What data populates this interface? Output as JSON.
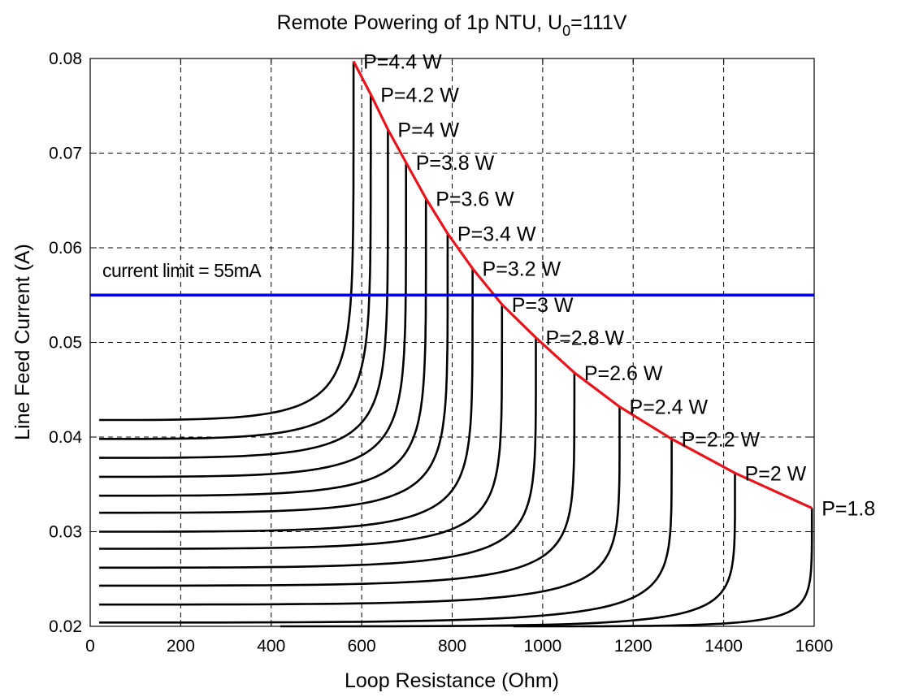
{
  "chart_data": {
    "type": "line",
    "title_main": "Remote Powering of 1p NTU, U",
    "title_sub": "0",
    "title_tail": "=111V",
    "xlabel": "Loop Resistance (Ohm)",
    "ylabel": "Line Feed Current (A)",
    "xlim": [
      0,
      1600
    ],
    "ylim": [
      0.02,
      0.08
    ],
    "grid": true,
    "x_ticks": [
      "0",
      "200",
      "400",
      "600",
      "800",
      "1000",
      "1200",
      "1400",
      "1600"
    ],
    "y_ticks": [
      "0.02",
      "0.03",
      "0.04",
      "0.05",
      "0.06",
      "0.07",
      "0.08"
    ],
    "colors": {
      "curves": "#000000",
      "boundary": "#e8141c",
      "limit": "#0000e6"
    },
    "current_limit": {
      "label": "current limit = 55mA",
      "value": 0.055
    },
    "series": [
      {
        "label": "P=4.4 W",
        "power": 4.4,
        "start": [
          20,
          0.0418
        ],
        "end": [
          582,
          0.0797
        ]
      },
      {
        "label": "P=4.2 W",
        "power": 4.2,
        "start": [
          20,
          0.0398
        ],
        "end": [
          620,
          0.0762
        ]
      },
      {
        "label": "P=4 W",
        "power": 4.0,
        "start": [
          20,
          0.0378
        ],
        "end": [
          658,
          0.0725
        ]
      },
      {
        "label": "P=3.8 W",
        "power": 3.8,
        "start": [
          20,
          0.0358
        ],
        "end": [
          698,
          0.069
        ]
      },
      {
        "label": "P=3.6 W",
        "power": 3.6,
        "start": [
          20,
          0.0338
        ],
        "end": [
          742,
          0.0652
        ]
      },
      {
        "label": "P=3.4 W",
        "power": 3.4,
        "start": [
          20,
          0.032
        ],
        "end": [
          790,
          0.0615
        ]
      },
      {
        "label": "P=3.2 W",
        "power": 3.2,
        "start": [
          20,
          0.03
        ],
        "end": [
          845,
          0.0578
        ]
      },
      {
        "label": "P=3 W",
        "power": 3.0,
        "start": [
          20,
          0.0282
        ],
        "end": [
          910,
          0.054
        ]
      },
      {
        "label": "P=2.8 W",
        "power": 2.8,
        "start": [
          20,
          0.0262
        ],
        "end": [
          985,
          0.0505
        ]
      },
      {
        "label": "P=2.6 W",
        "power": 2.6,
        "start": [
          20,
          0.0243
        ],
        "end": [
          1070,
          0.0468
        ]
      },
      {
        "label": "P=2.4 W",
        "power": 2.4,
        "start": [
          20,
          0.0223
        ],
        "end": [
          1170,
          0.0432
        ]
      },
      {
        "label": "P=2.2 W",
        "power": 2.2,
        "start": [
          20,
          0.0204
        ],
        "end": [
          1285,
          0.0398
        ]
      },
      {
        "label": "P=2 W",
        "power": 2.0,
        "start": [
          420,
          0.02
        ],
        "end": [
          1425,
          0.0362
        ]
      },
      {
        "label": "P=1.8",
        "power": 1.8,
        "start": [
          935,
          0.02
        ],
        "end": [
          1595,
          0.0325
        ]
      }
    ]
  }
}
